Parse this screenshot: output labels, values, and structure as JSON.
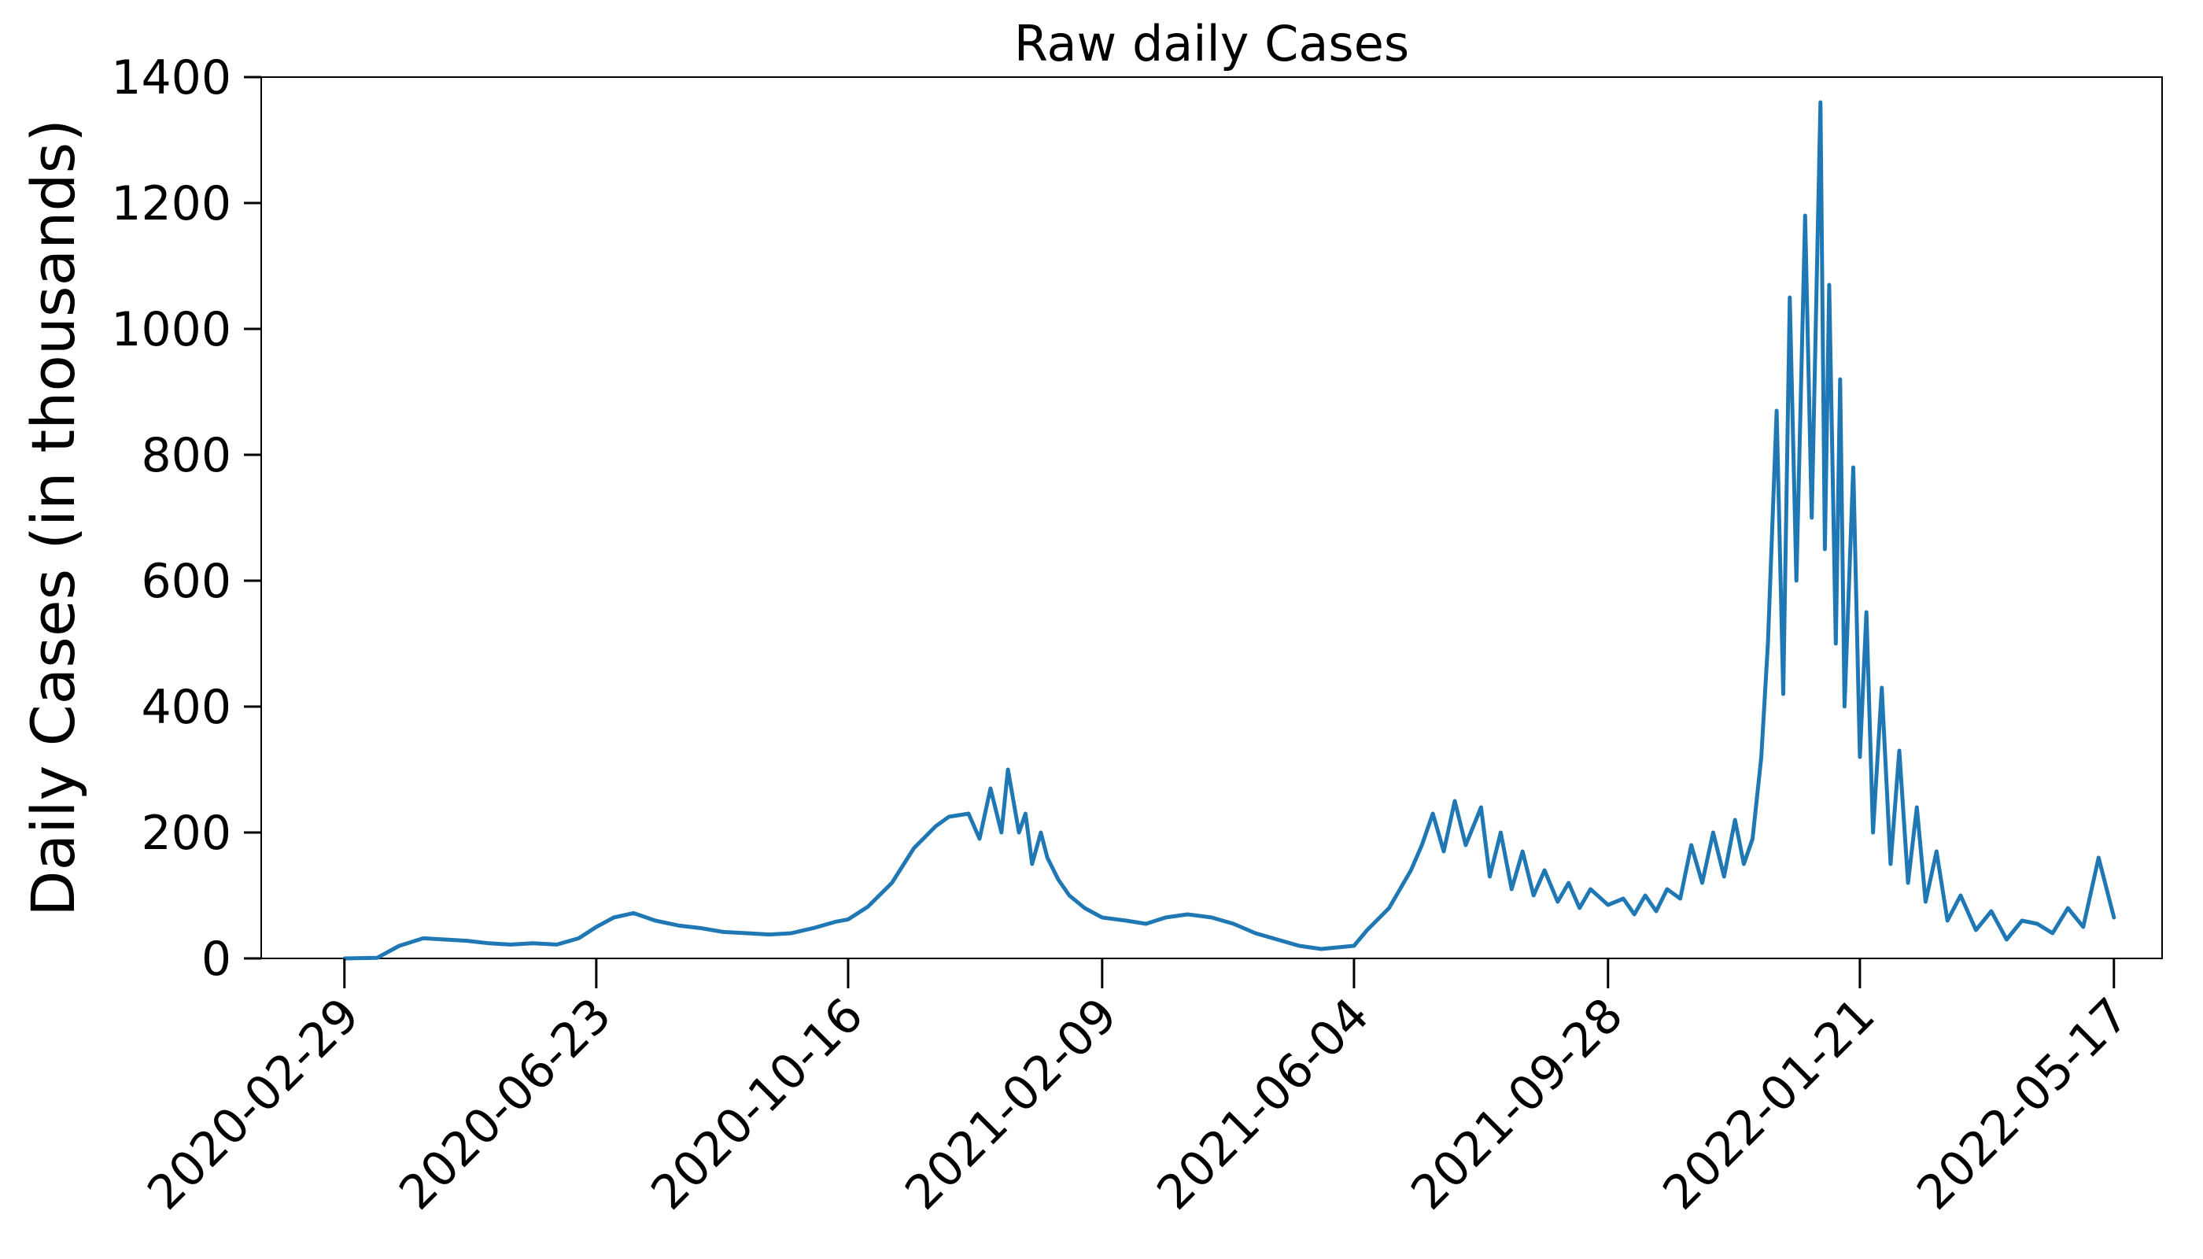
{
  "chart_data": {
    "type": "line",
    "title": "Raw daily Cases",
    "xlabel": "",
    "ylabel": "Daily Cases (in thousands)",
    "x_ticks": [
      "2020-02-29",
      "2020-06-23",
      "2020-10-16",
      "2021-02-09",
      "2021-06-04",
      "2021-09-28",
      "2022-01-21",
      "2022-05-17"
    ],
    "y_ticks": [
      0,
      200,
      400,
      600,
      800,
      1000,
      1200,
      1400
    ],
    "xlim": [
      "2020-01-22",
      "2022-06-08"
    ],
    "ylim": [
      0,
      1400
    ],
    "grid": false,
    "line_color": "#1f77b4",
    "series": [
      {
        "x": [
          "2020-02-29",
          "2020-03-15",
          "2020-03-25",
          "2020-04-05",
          "2020-04-15",
          "2020-04-25",
          "2020-05-05",
          "2020-05-15",
          "2020-05-25",
          "2020-06-05",
          "2020-06-15",
          "2020-06-23",
          "2020-07-01",
          "2020-07-10",
          "2020-07-20",
          "2020-07-31",
          "2020-08-10",
          "2020-08-20",
          "2020-08-31",
          "2020-09-10",
          "2020-09-20",
          "2020-09-30",
          "2020-10-10",
          "2020-10-16",
          "2020-10-25",
          "2020-11-05",
          "2020-11-15",
          "2020-11-25",
          "2020-12-01",
          "2020-12-10",
          "2020-12-15",
          "2020-12-20",
          "2020-12-25",
          "2020-12-28",
          "2021-01-02",
          "2021-01-05",
          "2021-01-08",
          "2021-01-12",
          "2021-01-15",
          "2021-01-20",
          "2021-01-25",
          "2021-02-01",
          "2021-02-09",
          "2021-02-20",
          "2021-03-01",
          "2021-03-10",
          "2021-03-20",
          "2021-03-31",
          "2021-04-10",
          "2021-04-20",
          "2021-04-30",
          "2021-05-10",
          "2021-05-20",
          "2021-06-04",
          "2021-06-10",
          "2021-06-20",
          "2021-06-30",
          "2021-07-05",
          "2021-07-10",
          "2021-07-15",
          "2021-07-20",
          "2021-07-25",
          "2021-08-01",
          "2021-08-05",
          "2021-08-10",
          "2021-08-15",
          "2021-08-20",
          "2021-08-25",
          "2021-08-30",
          "2021-09-05",
          "2021-09-10",
          "2021-09-15",
          "2021-09-20",
          "2021-09-28",
          "2021-10-05",
          "2021-10-10",
          "2021-10-15",
          "2021-10-20",
          "2021-10-25",
          "2021-10-31",
          "2021-11-05",
          "2021-11-10",
          "2021-11-15",
          "2021-11-20",
          "2021-11-25",
          "2021-11-29",
          "2021-12-03",
          "2021-12-07",
          "2021-12-10",
          "2021-12-14",
          "2021-12-17",
          "2021-12-20",
          "2021-12-23",
          "2021-12-27",
          "2021-12-30",
          "2022-01-03",
          "2022-01-05",
          "2022-01-07",
          "2022-01-10",
          "2022-01-12",
          "2022-01-14",
          "2022-01-18",
          "2022-01-21",
          "2022-01-24",
          "2022-01-27",
          "2022-01-31",
          "2022-02-04",
          "2022-02-08",
          "2022-02-12",
          "2022-02-16",
          "2022-02-20",
          "2022-02-25",
          "2022-03-02",
          "2022-03-08",
          "2022-03-15",
          "2022-03-22",
          "2022-03-29",
          "2022-04-05",
          "2022-04-12",
          "2022-04-19",
          "2022-04-26",
          "2022-05-03",
          "2022-05-10",
          "2022-05-17"
        ],
        "values": [
          0,
          1,
          20,
          32,
          30,
          28,
          24,
          22,
          24,
          22,
          32,
          50,
          65,
          72,
          60,
          52,
          48,
          42,
          40,
          38,
          40,
          48,
          58,
          62,
          82,
          120,
          175,
          210,
          225,
          230,
          190,
          270,
          200,
          300,
          200,
          230,
          150,
          200,
          160,
          125,
          100,
          80,
          65,
          60,
          55,
          65,
          70,
          65,
          55,
          40,
          30,
          20,
          15,
          20,
          45,
          80,
          140,
          180,
          230,
          170,
          250,
          180,
          240,
          130,
          200,
          110,
          170,
          100,
          140,
          90,
          120,
          80,
          110,
          85,
          95,
          70,
          100,
          75,
          110,
          95,
          180,
          120,
          200,
          130,
          220,
          150,
          190,
          320,
          500,
          870,
          420,
          1050,
          600,
          1180,
          700,
          1360,
          650,
          1070,
          500,
          920,
          400,
          780,
          320,
          550,
          200,
          430,
          150,
          330,
          120,
          240,
          90,
          170,
          60,
          100,
          45,
          75,
          30,
          60,
          55,
          40,
          80,
          50,
          160,
          65
        ]
      }
    ]
  }
}
